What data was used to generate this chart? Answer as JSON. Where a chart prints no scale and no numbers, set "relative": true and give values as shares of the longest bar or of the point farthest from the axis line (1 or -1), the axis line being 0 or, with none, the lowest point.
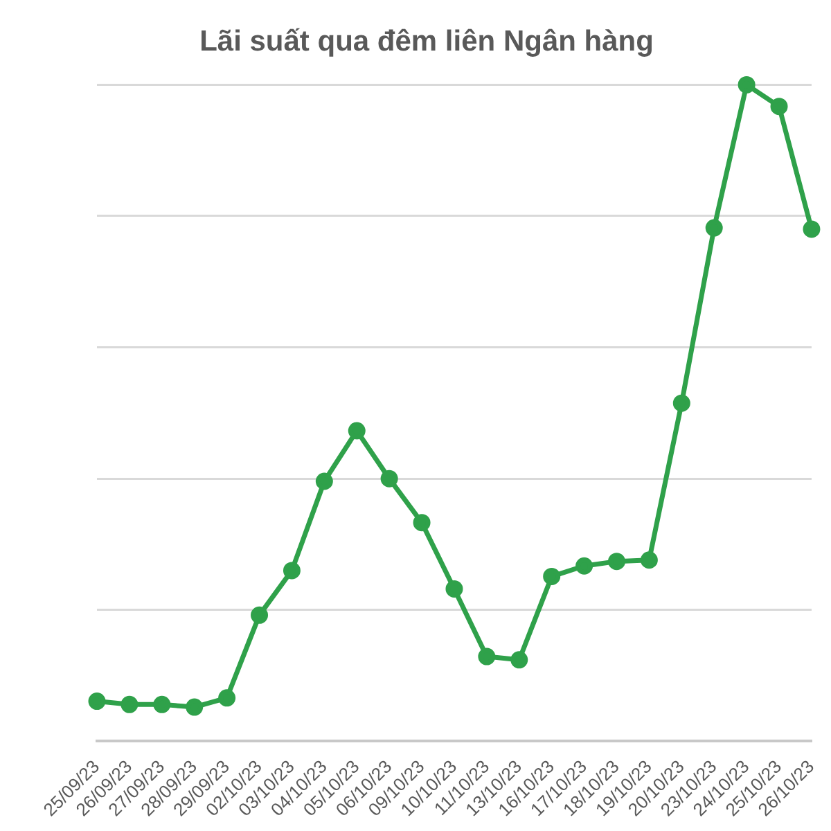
{
  "chart_data": {
    "type": "line",
    "title": "Lãi suất qua đêm liên Ngân hàng",
    "relative": true,
    "grid": "y",
    "legend": false,
    "marker": "circle",
    "line_style": "solid",
    "categories": [
      "25/09/23",
      "26/09/23",
      "27/09/23",
      "28/09/23",
      "29/09/23",
      "02/10/23",
      "03/10/23",
      "04/10/23",
      "05/10/23",
      "06/10/23",
      "09/10/23",
      "10/10/23",
      "11/10/23",
      "13/10/23",
      "16/10/23",
      "17/10/23",
      "18/10/23",
      "19/10/23",
      "20/10/23",
      "23/10/23",
      "24/10/23",
      "25/10/23",
      "26/10/23"
    ],
    "series": [
      {
        "color": "#2fa14a",
        "values": [
          0.061,
          0.056,
          0.056,
          0.052,
          0.066,
          0.192,
          0.26,
          0.396,
          0.473,
          0.4,
          0.333,
          0.232,
          0.129,
          0.124,
          0.251,
          0.267,
          0.274,
          0.276,
          0.515,
          0.782,
          1,
          0.967,
          0.78
        ]
      }
    ]
  }
}
